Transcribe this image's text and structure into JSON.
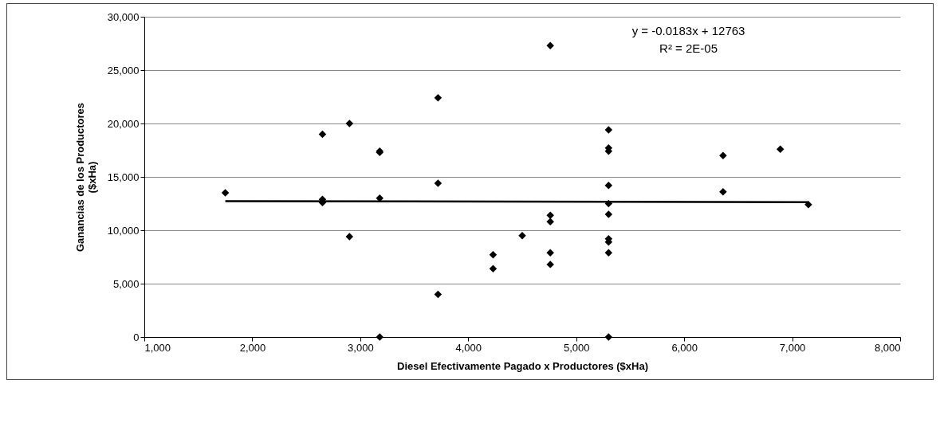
{
  "chart_data": {
    "type": "scatter",
    "xlabel": "Diesel Efectivamente Pagado x Productores ($xHa)",
    "ylabel": "Ganancias de los Productores ($xHa)",
    "xlim": [
      1000,
      8000
    ],
    "xticks": [
      {
        "value": 1000,
        "label": "1,000"
      },
      {
        "value": 2000,
        "label": "2,000"
      },
      {
        "value": 3000,
        "label": "3,000"
      },
      {
        "value": 4000,
        "label": "4,000"
      },
      {
        "value": 5000,
        "label": "5,000"
      },
      {
        "value": 6000,
        "label": "6,000"
      },
      {
        "value": 7000,
        "label": "7,000"
      },
      {
        "value": 8000,
        "label": "8,000"
      }
    ],
    "ylim": [
      0,
      30000
    ],
    "yticks": [
      0,
      {
        "value": 5000,
        "label": "5,000"
      },
      {
        "value": 10000,
        "label": "10,000"
      },
      {
        "value": 15000,
        "label": "15,000"
      },
      {
        "value": 20000,
        "label": "20,000"
      },
      {
        "value": 25000,
        "label": "25,000"
      },
      {
        "value": 30000,
        "label": "30,000"
      }
    ],
    "grid": "y",
    "marker": "diamond",
    "annotations": [
      "y = -0.0183x + 12763",
      "R² = 2E-05"
    ],
    "series": [
      {
        "color": "#000000",
        "x": [
          1750,
          2650,
          2650,
          2650,
          2900,
          2900,
          3180,
          3180,
          3180,
          3180,
          3720,
          3720,
          3720,
          4230,
          4230,
          4500,
          4760,
          4760,
          4760,
          4760,
          4760,
          5300,
          5300,
          5300,
          5300,
          5300,
          5300,
          5300,
          5300,
          5300,
          5300,
          6360,
          6360,
          6890,
          7150
        ],
        "values": [
          13500,
          19000,
          12900,
          12600,
          20000,
          9400,
          17400,
          17300,
          13000,
          0,
          22400,
          14400,
          4000,
          7700,
          6400,
          9500,
          27300,
          11400,
          10800,
          7900,
          6800,
          19400,
          17700,
          17400,
          14200,
          12500,
          11500,
          9200,
          8900,
          7900,
          0,
          17000,
          13600,
          17600,
          12400
        ]
      },
      {
        "type": "line",
        "color": "#000000",
        "marker": "none",
        "x": [
          1750,
          7150
        ],
        "values": [
          12730,
          12630
        ]
      }
    ]
  }
}
